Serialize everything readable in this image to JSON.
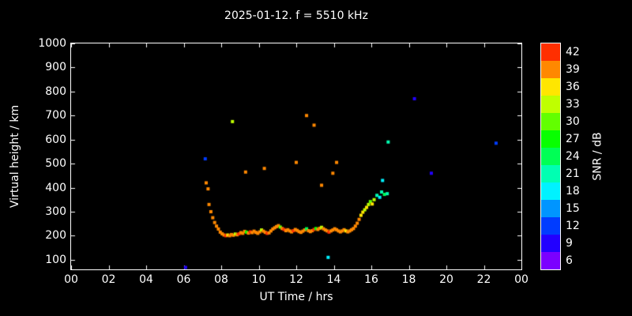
{
  "colors": {
    "background": "#000000",
    "text": "#ffffff"
  },
  "chart_data": {
    "type": "scatter",
    "title": "2025-01-12. f = 5510 kHz",
    "xlabel": "UT Time / hrs",
    "ylabel": "Virtual height / km",
    "xlim": [
      0,
      24
    ],
    "ylim": [
      60,
      1000
    ],
    "grid": false,
    "xticks": {
      "values": [
        0,
        2,
        4,
        6,
        8,
        10,
        12,
        14,
        16,
        18,
        20,
        22,
        24
      ],
      "labels": [
        "00",
        "02",
        "04",
        "06",
        "08",
        "10",
        "12",
        "14",
        "16",
        "18",
        "20",
        "22",
        "00"
      ]
    },
    "yticks": [
      100,
      200,
      300,
      400,
      500,
      600,
      700,
      800,
      900,
      1000
    ],
    "colorbar": {
      "label": "SNR / dB",
      "position": "right",
      "range": [
        4.5,
        43.5
      ],
      "band_step": 3,
      "ticks": [
        6,
        9,
        12,
        15,
        18,
        21,
        24,
        27,
        30,
        33,
        36,
        39,
        42
      ]
    },
    "points_format": [
      "ut_hours",
      "virtual_height_km",
      "snr_db"
    ],
    "points": [
      [
        6.1,
        68,
        10
      ],
      [
        7.15,
        520,
        12
      ],
      [
        7.2,
        420,
        40
      ],
      [
        7.3,
        395,
        38
      ],
      [
        7.35,
        330,
        39
      ],
      [
        7.45,
        300,
        38
      ],
      [
        7.55,
        275,
        39
      ],
      [
        7.65,
        255,
        40
      ],
      [
        7.75,
        240,
        39
      ],
      [
        7.85,
        228,
        38
      ],
      [
        7.95,
        215,
        40
      ],
      [
        8.05,
        208,
        39
      ],
      [
        8.15,
        203,
        40
      ],
      [
        8.25,
        200,
        41
      ],
      [
        8.35,
        203,
        36
      ],
      [
        8.45,
        200,
        40
      ],
      [
        8.55,
        205,
        39
      ],
      [
        8.6,
        675,
        33
      ],
      [
        8.65,
        202,
        40
      ],
      [
        8.75,
        207,
        33
      ],
      [
        8.85,
        204,
        40
      ],
      [
        8.95,
        208,
        41
      ],
      [
        9.05,
        213,
        40
      ],
      [
        9.15,
        210,
        39
      ],
      [
        9.25,
        218,
        40
      ],
      [
        9.3,
        465,
        40
      ],
      [
        9.35,
        215,
        27
      ],
      [
        9.45,
        211,
        40
      ],
      [
        9.55,
        216,
        41
      ],
      [
        9.65,
        213,
        40
      ],
      [
        9.75,
        219,
        39
      ],
      [
        9.85,
        214,
        40
      ],
      [
        9.95,
        210,
        38
      ],
      [
        10.05,
        216,
        40
      ],
      [
        10.15,
        224,
        33
      ],
      [
        10.25,
        219,
        40
      ],
      [
        10.3,
        480,
        39
      ],
      [
        10.35,
        214,
        39
      ],
      [
        10.45,
        210,
        41
      ],
      [
        10.55,
        212,
        40
      ],
      [
        10.65,
        220,
        39
      ],
      [
        10.75,
        228,
        40
      ],
      [
        10.85,
        233,
        39
      ],
      [
        10.95,
        238,
        40
      ],
      [
        11.05,
        242,
        39
      ],
      [
        11.15,
        236,
        30
      ],
      [
        11.25,
        230,
        40
      ],
      [
        11.35,
        226,
        41
      ],
      [
        11.45,
        221,
        39
      ],
      [
        11.55,
        225,
        40
      ],
      [
        11.65,
        220,
        39
      ],
      [
        11.75,
        216,
        40
      ],
      [
        11.85,
        221,
        41
      ],
      [
        11.95,
        226,
        40
      ],
      [
        12.0,
        505,
        40
      ],
      [
        12.05,
        222,
        39
      ],
      [
        12.15,
        217,
        40
      ],
      [
        12.25,
        214,
        39
      ],
      [
        12.35,
        219,
        38
      ],
      [
        12.45,
        224,
        40
      ],
      [
        12.55,
        700,
        40
      ],
      [
        12.55,
        229,
        24
      ],
      [
        12.65,
        221,
        40
      ],
      [
        12.75,
        217,
        39
      ],
      [
        12.85,
        221,
        40
      ],
      [
        12.95,
        660,
        39
      ],
      [
        12.95,
        226,
        41
      ],
      [
        13.05,
        230,
        27
      ],
      [
        13.15,
        226,
        39
      ],
      [
        13.25,
        231,
        40
      ],
      [
        13.35,
        410,
        40
      ],
      [
        13.35,
        235,
        33
      ],
      [
        13.45,
        229,
        40
      ],
      [
        13.55,
        224,
        39
      ],
      [
        13.65,
        220,
        40
      ],
      [
        13.7,
        110,
        18
      ],
      [
        13.75,
        215,
        41
      ],
      [
        13.85,
        220,
        40
      ],
      [
        13.95,
        460,
        39
      ],
      [
        13.95,
        224,
        39
      ],
      [
        14.05,
        229,
        38
      ],
      [
        14.15,
        505,
        39
      ],
      [
        14.15,
        225,
        40
      ],
      [
        14.25,
        220,
        39
      ],
      [
        14.35,
        216,
        40
      ],
      [
        14.45,
        220,
        39
      ],
      [
        14.55,
        225,
        40
      ],
      [
        14.65,
        220,
        36
      ],
      [
        14.75,
        216,
        40
      ],
      [
        14.85,
        220,
        39
      ],
      [
        14.95,
        225,
        40
      ],
      [
        15.05,
        230,
        39
      ],
      [
        15.15,
        240,
        40
      ],
      [
        15.25,
        252,
        39
      ],
      [
        15.35,
        268,
        38
      ],
      [
        15.45,
        285,
        36
      ],
      [
        15.55,
        298,
        37
      ],
      [
        15.65,
        308,
        33
      ],
      [
        15.75,
        318,
        36
      ],
      [
        15.85,
        330,
        33
      ],
      [
        15.95,
        342,
        30
      ],
      [
        16.05,
        332,
        36
      ],
      [
        16.15,
        350,
        33
      ],
      [
        16.3,
        368,
        21
      ],
      [
        16.45,
        360,
        18
      ],
      [
        16.55,
        382,
        21
      ],
      [
        16.6,
        430,
        18
      ],
      [
        16.7,
        372,
        24
      ],
      [
        16.85,
        375,
        20
      ],
      [
        16.9,
        590,
        21
      ],
      [
        18.3,
        770,
        9
      ],
      [
        19.2,
        460,
        10
      ],
      [
        22.65,
        585,
        11
      ]
    ]
  }
}
